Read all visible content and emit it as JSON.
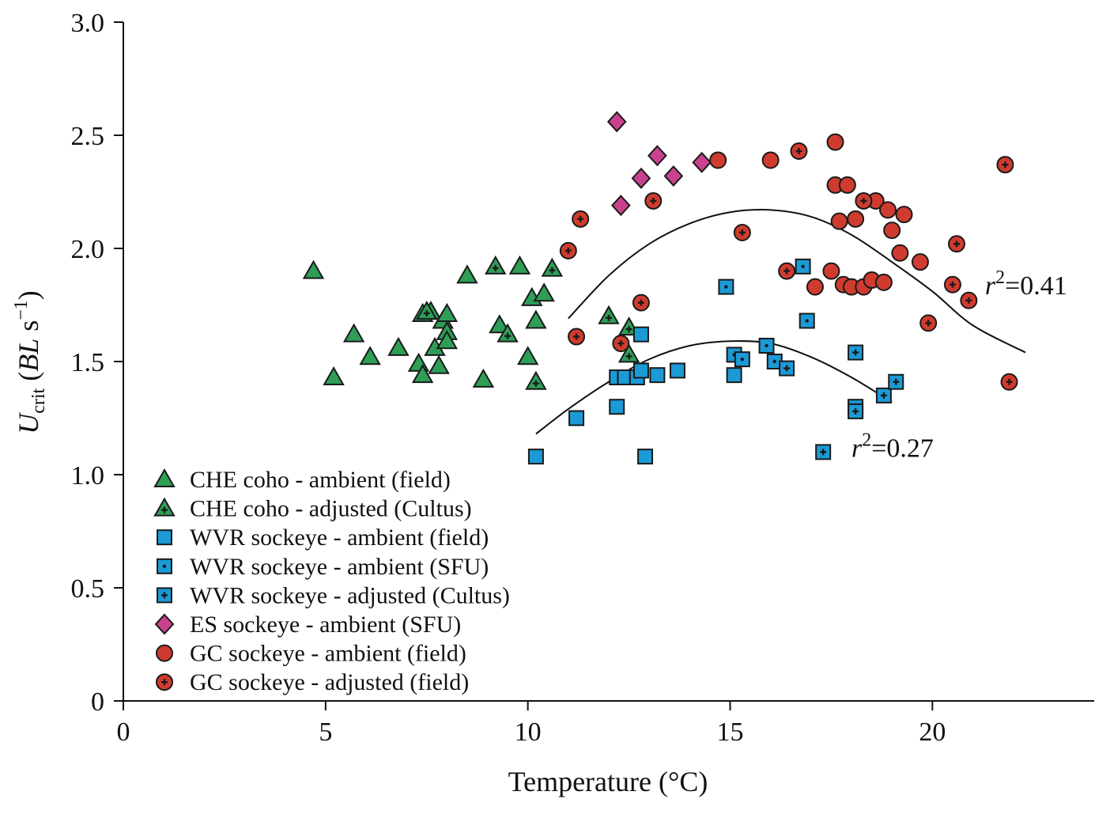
{
  "chart_data": {
    "type": "scatter",
    "title": "",
    "xlabel": "Temperature (°C)",
    "ylabel_parts": {
      "main": "U",
      "sub": "crit",
      "unit_open": " (",
      "unit_bl": "BL",
      "unit_s": " s",
      "unit_exp": "−1",
      "unit_close": ")"
    },
    "xlim": [
      0,
      24
    ],
    "ylim": [
      0,
      3.0
    ],
    "x_ticks": [
      0,
      5,
      10,
      15,
      20
    ],
    "x_tick_labels": [
      "0",
      "5",
      "10",
      "15",
      "20"
    ],
    "y_ticks": [
      0,
      0.5,
      1.0,
      1.5,
      2.0,
      2.5,
      3.0
    ],
    "y_tick_labels": [
      "0",
      "0.5",
      "1.0",
      "1.5",
      "2.0",
      "2.5",
      "3.0"
    ],
    "grid": false,
    "legend_position": "bottom-left",
    "colors": {
      "green": "#2e9e57",
      "blue": "#1b9ad6",
      "magenta": "#c8428f",
      "red": "#cf3b2e"
    },
    "series": [
      {
        "name": "CHE coho - ambient (field)",
        "marker": "triangle",
        "color": "#2e9e57",
        "inner": "none",
        "points": [
          [
            4.7,
            1.9
          ],
          [
            5.2,
            1.43
          ],
          [
            5.7,
            1.62
          ],
          [
            6.1,
            1.52
          ],
          [
            6.8,
            1.56
          ],
          [
            7.3,
            1.49
          ],
          [
            7.4,
            1.44
          ],
          [
            7.4,
            1.71
          ],
          [
            7.6,
            1.72
          ],
          [
            7.7,
            1.56
          ],
          [
            7.8,
            1.48
          ],
          [
            7.9,
            1.68
          ],
          [
            8.0,
            1.71
          ],
          [
            8.0,
            1.63
          ],
          [
            8.0,
            1.59
          ],
          [
            8.5,
            1.88
          ],
          [
            8.9,
            1.42
          ],
          [
            9.3,
            1.66
          ],
          [
            9.8,
            1.92
          ],
          [
            10.0,
            1.52
          ],
          [
            10.1,
            1.78
          ],
          [
            10.2,
            1.68
          ],
          [
            10.4,
            1.8
          ]
        ]
      },
      {
        "name": "CHE coho - adjusted (Cultus)",
        "marker": "triangle",
        "color": "#2e9e57",
        "inner": "plus",
        "points": [
          [
            7.5,
            1.72
          ],
          [
            9.2,
            1.92
          ],
          [
            9.5,
            1.62
          ],
          [
            10.2,
            1.41
          ],
          [
            10.6,
            1.91
          ],
          [
            12.0,
            1.7
          ],
          [
            12.5,
            1.65
          ],
          [
            12.5,
            1.53
          ]
        ]
      },
      {
        "name": "WVR sockeye - ambient (field)",
        "marker": "square",
        "color": "#1b9ad6",
        "inner": "none",
        "points": [
          [
            10.2,
            1.08
          ],
          [
            11.2,
            1.25
          ],
          [
            12.2,
            1.3
          ],
          [
            12.2,
            1.43
          ],
          [
            12.4,
            1.43
          ],
          [
            12.7,
            1.43
          ],
          [
            12.8,
            1.46
          ],
          [
            12.8,
            1.62
          ],
          [
            12.9,
            1.08
          ],
          [
            13.2,
            1.44
          ],
          [
            13.7,
            1.46
          ],
          [
            15.1,
            1.44
          ]
        ]
      },
      {
        "name": "WVR sockeye - ambient (SFU)",
        "marker": "square",
        "color": "#1b9ad6",
        "inner": "dot",
        "points": [
          [
            14.9,
            1.83
          ],
          [
            15.1,
            1.53
          ],
          [
            15.3,
            1.51
          ],
          [
            15.9,
            1.57
          ],
          [
            16.1,
            1.5
          ],
          [
            16.8,
            1.92
          ],
          [
            16.9,
            1.68
          ]
        ]
      },
      {
        "name": "WVR sockeye - adjusted (Cultus)",
        "marker": "square",
        "color": "#1b9ad6",
        "inner": "plus",
        "points": [
          [
            16.4,
            1.47
          ],
          [
            17.3,
            1.1
          ],
          [
            18.1,
            1.54
          ],
          [
            18.1,
            1.3
          ],
          [
            18.1,
            1.28
          ],
          [
            18.8,
            1.35
          ],
          [
            19.1,
            1.41
          ]
        ]
      },
      {
        "name": "ES sockeye - ambient (SFU)",
        "marker": "diamond",
        "color": "#c8428f",
        "inner": "none",
        "points": [
          [
            12.2,
            2.56
          ],
          [
            12.3,
            2.19
          ],
          [
            12.8,
            2.31
          ],
          [
            13.2,
            2.41
          ],
          [
            13.6,
            2.32
          ],
          [
            14.3,
            2.38
          ]
        ]
      },
      {
        "name": "GC sockeye - ambient (field)",
        "marker": "circle",
        "color": "#cf3b2e",
        "inner": "none",
        "points": [
          [
            14.7,
            2.39
          ],
          [
            16.0,
            2.39
          ],
          [
            17.1,
            1.83
          ],
          [
            17.5,
            1.9
          ],
          [
            17.6,
            2.47
          ],
          [
            17.6,
            2.28
          ],
          [
            17.7,
            2.12
          ],
          [
            17.8,
            1.84
          ],
          [
            17.9,
            2.28
          ],
          [
            18.0,
            1.83
          ],
          [
            18.1,
            2.13
          ],
          [
            18.3,
            1.83
          ],
          [
            18.5,
            1.86
          ],
          [
            18.6,
            2.21
          ],
          [
            18.8,
            1.85
          ],
          [
            18.9,
            2.17
          ],
          [
            19.0,
            2.08
          ],
          [
            19.2,
            1.98
          ],
          [
            19.3,
            2.15
          ],
          [
            19.7,
            1.94
          ]
        ]
      },
      {
        "name": "GC sockeye - adjusted (field)",
        "marker": "circle",
        "color": "#cf3b2e",
        "inner": "plus",
        "points": [
          [
            11.0,
            1.99
          ],
          [
            11.2,
            1.61
          ],
          [
            11.3,
            2.13
          ],
          [
            12.3,
            1.58
          ],
          [
            12.8,
            1.76
          ],
          [
            13.1,
            2.21
          ],
          [
            15.3,
            2.07
          ],
          [
            16.4,
            1.9
          ],
          [
            16.7,
            2.43
          ],
          [
            18.3,
            2.21
          ],
          [
            19.9,
            1.67
          ],
          [
            20.5,
            1.84
          ],
          [
            20.6,
            2.02
          ],
          [
            20.9,
            1.77
          ],
          [
            21.8,
            2.37
          ],
          [
            21.9,
            1.41
          ]
        ]
      }
    ],
    "fits": [
      {
        "label_r": "r",
        "label_exp": "2",
        "label_val": "=0.41",
        "curve": [
          [
            11.0,
            1.69
          ],
          [
            12.0,
            1.88
          ],
          [
            13.0,
            2.02
          ],
          [
            14.0,
            2.11
          ],
          [
            15.0,
            2.16
          ],
          [
            16.0,
            2.17
          ],
          [
            17.0,
            2.14
          ],
          [
            18.0,
            2.06
          ],
          [
            19.0,
            1.94
          ],
          [
            20.0,
            1.81
          ],
          [
            21.0,
            1.66
          ],
          [
            22.3,
            1.54
          ]
        ],
        "label_at": [
          21.3,
          1.84
        ]
      },
      {
        "label_r": "r",
        "label_exp": "2",
        "label_val": "=0.27",
        "curve": [
          [
            10.2,
            1.18
          ],
          [
            11.0,
            1.29
          ],
          [
            12.0,
            1.41
          ],
          [
            13.0,
            1.51
          ],
          [
            14.0,
            1.57
          ],
          [
            15.0,
            1.59
          ],
          [
            16.0,
            1.58
          ],
          [
            17.0,
            1.52
          ],
          [
            18.0,
            1.43
          ],
          [
            19.0,
            1.32
          ]
        ],
        "label_at": [
          18.0,
          1.12
        ]
      }
    ]
  }
}
